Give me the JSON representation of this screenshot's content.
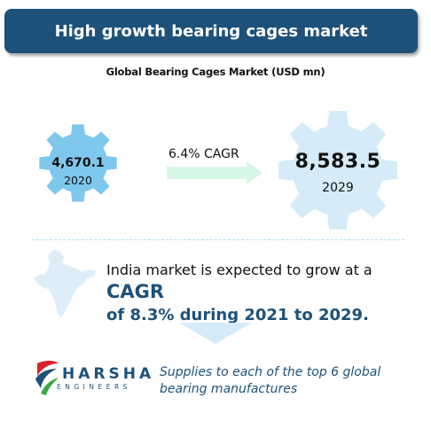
{
  "banner": {
    "title": "High growth bearing cages market"
  },
  "subtitle": "Global Bearing Cages Market (USD mn)",
  "gears": [
    {
      "value": "4,670.1",
      "year": "2020"
    },
    {
      "value": "8,583.5",
      "year": "2029"
    }
  ],
  "growth": {
    "label": "6.4% CAGR"
  },
  "india": {
    "text_prefix": "India market is expected to grow at a ",
    "text_cagr": "CAGR",
    "text_bold": "of 8.3% during 2021 to 2029."
  },
  "logo": {
    "name": "HARSHA",
    "sub": "ENGINEERS"
  },
  "supplies": "Supplies to each of the top 6 global bearing manufactures",
  "colors": {
    "banner": "#1d5179",
    "gear_small": "#7ec8ee",
    "gear_large": "#d5ecf8",
    "arrow": "#d8f7e6",
    "accent": "#1d5179",
    "logo_red": "#d8232a",
    "logo_green": "#3aa845"
  },
  "icons": [
    "gear-icon",
    "arrow-right-icon",
    "india-map-icon",
    "triangle-down-icon",
    "harsha-logo"
  ]
}
